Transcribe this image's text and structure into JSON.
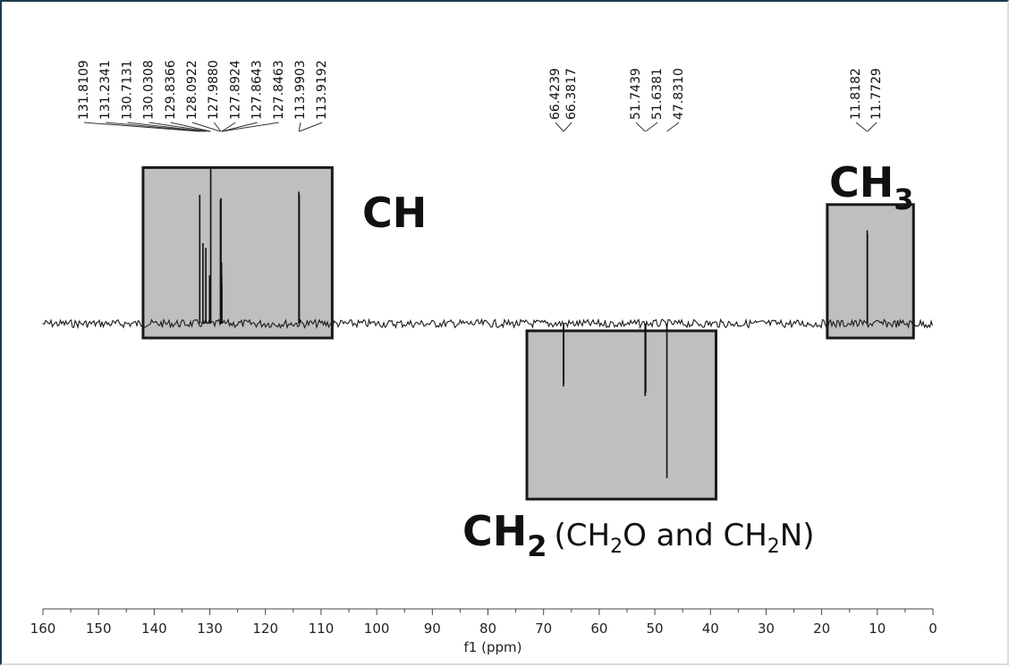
{
  "chart_data": {
    "type": "line",
    "title": "",
    "xlabel": "f1 (ppm)",
    "ylabel": "",
    "xlim": [
      160,
      0
    ],
    "x_ticks": [
      160,
      150,
      140,
      130,
      120,
      110,
      100,
      90,
      80,
      70,
      60,
      50,
      40,
      30,
      20,
      10,
      0
    ],
    "x_tick_labels": [
      "160",
      "150",
      "140",
      "130",
      "120",
      "110",
      "100",
      "90",
      "80",
      "70",
      "60",
      "50",
      "40",
      "30",
      "20",
      "10",
      "0"
    ],
    "baseline": 0,
    "ylim": [
      -1.0,
      1.0
    ],
    "peaks": [
      {
        "ppm": 131.8109,
        "intensity": 0.8
      },
      {
        "ppm": 131.2341,
        "intensity": 0.5
      },
      {
        "ppm": 130.7131,
        "intensity": 0.47
      },
      {
        "ppm": 130.0308,
        "intensity": 0.3
      },
      {
        "ppm": 129.8366,
        "intensity": 0.97
      },
      {
        "ppm": 128.0922,
        "intensity": 0.77
      },
      {
        "ppm": 127.988,
        "intensity": 0.78
      },
      {
        "ppm": 127.8924,
        "intensity": 0.38
      },
      {
        "ppm": 127.8643,
        "intensity": 0.3
      },
      {
        "ppm": 127.8463,
        "intensity": 0.25
      },
      {
        "ppm": 113.9903,
        "intensity": 0.82
      },
      {
        "ppm": 113.9192,
        "intensity": 0.8
      },
      {
        "ppm": 66.4239,
        "intensity": -0.39
      },
      {
        "ppm": 66.3817,
        "intensity": -0.37
      },
      {
        "ppm": 51.7439,
        "intensity": -0.45
      },
      {
        "ppm": 51.6381,
        "intensity": -0.43
      },
      {
        "ppm": 47.831,
        "intensity": -0.96
      },
      {
        "ppm": 11.8182,
        "intensity": 0.58
      },
      {
        "ppm": 11.7729,
        "intensity": 0.56
      }
    ],
    "peak_labels": [
      "131.8109",
      "131.2341",
      "130.7131",
      "130.0308",
      "129.8366",
      "128.0922",
      "127.9880",
      "127.8924",
      "127.8643",
      "127.8463",
      "113.9903",
      "113.9192",
      "66.4239",
      "66.3817",
      "51.7439",
      "51.6381",
      "47.8310",
      "11.8182",
      "11.7729"
    ],
    "regions": [
      {
        "label": "CH",
        "x_range": [
          142,
          108
        ],
        "direction": "positive",
        "color": "#bfbfbf"
      },
      {
        "label": "CH2",
        "x_range": [
          73,
          39
        ],
        "direction": "negative",
        "color": "#bfbfbf"
      },
      {
        "label": "CH3",
        "x_range": [
          19,
          3.5
        ],
        "direction": "positive",
        "color": "#bfbfbf"
      }
    ],
    "annotations": {
      "ch": "CH",
      "ch2_main": "CH",
      "ch2_sub": "2",
      "ch2_paren_open": "(CH",
      "ch2_paren_mid": "O and CH",
      "ch2_paren_close": "N)",
      "ch2_paren_sub": "2",
      "ch3_main": "CH",
      "ch3_sub": "3"
    },
    "grid": false,
    "legend": "none"
  }
}
